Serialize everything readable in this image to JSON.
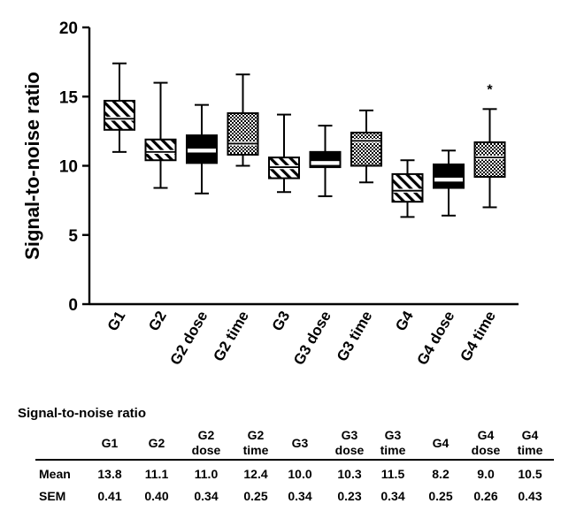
{
  "chart_data": {
    "type": "box",
    "ylabel": "Signal-to-noise ratio",
    "xlabel": "",
    "ylim": [
      0,
      20
    ],
    "yticks": [
      0,
      5,
      10,
      15,
      20
    ],
    "categories": [
      "G1",
      "G2",
      "G2 dose",
      "G2 time",
      "G3",
      "G3 dose",
      "G3 time",
      "G4",
      "G4 dose",
      "G4 time"
    ],
    "boxes": [
      {
        "name": "G1",
        "min": 11.0,
        "q1": 12.6,
        "median": 13.4,
        "q3": 14.7,
        "max": 17.4,
        "fill": "diagonal-hatch"
      },
      {
        "name": "G2",
        "min": 8.4,
        "q1": 10.4,
        "median": 11.0,
        "q3": 11.9,
        "max": 16.0,
        "fill": "diagonal-hatch"
      },
      {
        "name": "G2 dose",
        "min": 8.0,
        "q1": 10.2,
        "median": 11.1,
        "q3": 12.2,
        "max": 14.4,
        "fill": "solid-black"
      },
      {
        "name": "G2 time",
        "min": 10.0,
        "q1": 10.8,
        "median": 11.6,
        "q3": 13.8,
        "max": 16.6,
        "fill": "checkered"
      },
      {
        "name": "G3",
        "min": 8.1,
        "q1": 9.1,
        "median": 9.9,
        "q3": 10.6,
        "max": 13.7,
        "fill": "diagonal-hatch"
      },
      {
        "name": "G3 dose",
        "min": 7.8,
        "q1": 9.9,
        "median": 10.2,
        "q3": 11.0,
        "max": 12.9,
        "fill": "solid-black"
      },
      {
        "name": "G3 time",
        "min": 8.8,
        "q1": 10.0,
        "median": 11.8,
        "q3": 12.4,
        "max": 14.0,
        "fill": "checkered"
      },
      {
        "name": "G4",
        "min": 6.3,
        "q1": 7.4,
        "median": 8.2,
        "q3": 9.4,
        "max": 10.4,
        "fill": "diagonal-hatch"
      },
      {
        "name": "G4 dose",
        "min": 6.4,
        "q1": 8.4,
        "median": 9.0,
        "q3": 10.1,
        "max": 11.1,
        "fill": "solid-black"
      },
      {
        "name": "G4 time",
        "min": 7.0,
        "q1": 9.2,
        "median": 10.6,
        "q3": 11.7,
        "max": 14.1,
        "fill": "checkered"
      }
    ],
    "annotations": [
      {
        "category": "G4 time",
        "text": "*",
        "y": 15.5
      }
    ],
    "grid": false,
    "legend": "none"
  },
  "table": {
    "title": "Signal-to-noise ratio",
    "columns": [
      [
        "G1"
      ],
      [
        "G2"
      ],
      [
        "G2",
        "dose"
      ],
      [
        "G2",
        "time"
      ],
      [
        "G3"
      ],
      [
        "G3",
        "dose"
      ],
      [
        "G3",
        "time"
      ],
      [
        "G4"
      ],
      [
        "G4",
        "dose"
      ],
      [
        "G4",
        "time"
      ]
    ],
    "rows": [
      {
        "label": "Mean",
        "values": [
          "13.8",
          "11.1",
          "11.0",
          "12.4",
          "10.0",
          "10.3",
          "11.5",
          "8.2",
          "9.0",
          "10.5"
        ]
      },
      {
        "label": "SEM",
        "values": [
          "0.41",
          "0.40",
          "0.34",
          "0.25",
          "0.34",
          "0.23",
          "0.34",
          "0.25",
          "0.26",
          "0.43"
        ]
      }
    ]
  }
}
